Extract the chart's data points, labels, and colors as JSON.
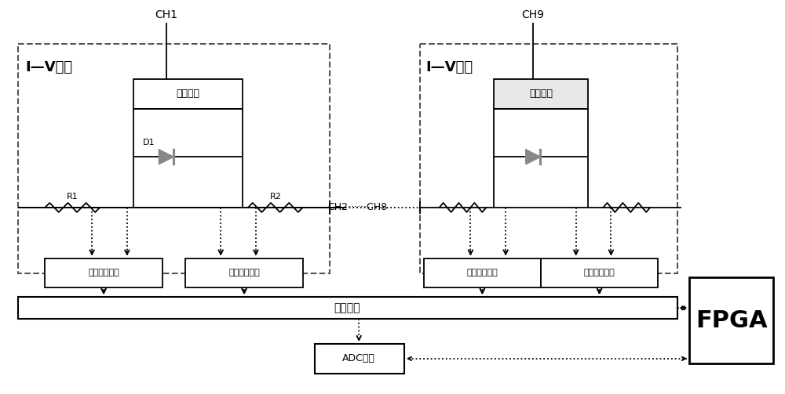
{
  "bg_color": "#ffffff",
  "lc": "#000000",
  "dc": "#555555",
  "figsize": [
    10.0,
    5.03
  ],
  "dpi": 100,
  "labels": {
    "ch1": "CH1",
    "ch2_ch8": "CH2······CH8",
    "ch9": "CH9",
    "iv_conv": "I—V转换",
    "gear_switch": "档位切换",
    "d1": "D1",
    "r1": "R1",
    "r2": "R2",
    "signal_cond": "信号调理电路",
    "switch_matrix": "开关矩阵",
    "adc": "ADC采集",
    "fpga": "FPGA"
  }
}
